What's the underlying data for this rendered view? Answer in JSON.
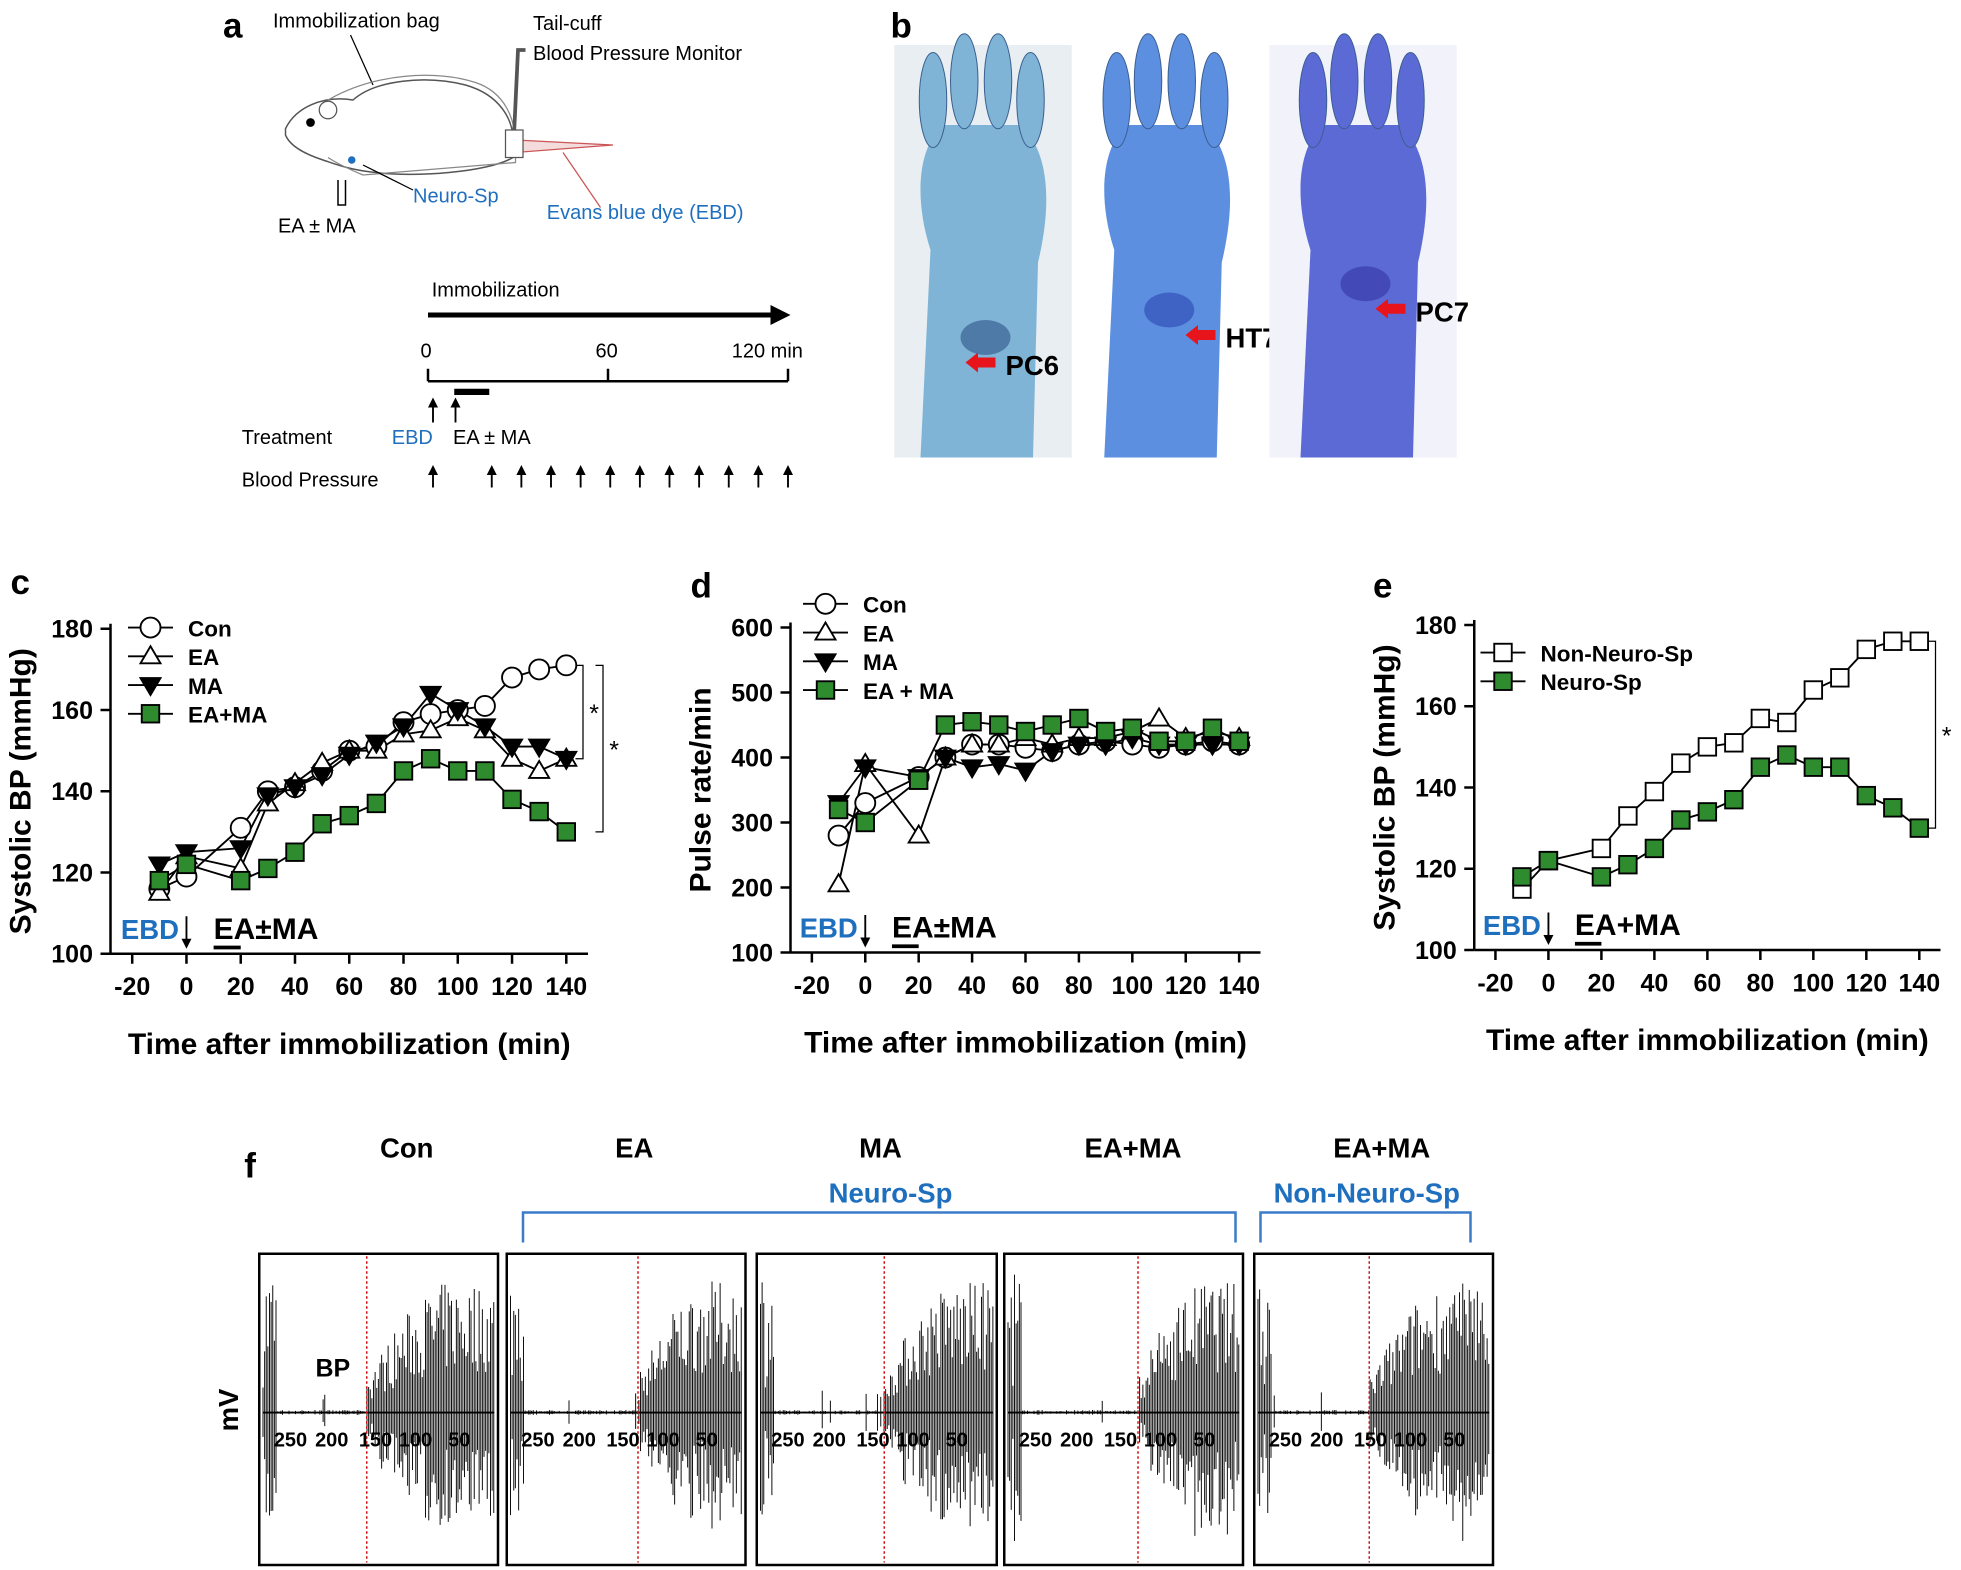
{
  "figure": {
    "panel_labels": [
      "a",
      "b",
      "c",
      "d",
      "e",
      "f"
    ],
    "a": {
      "bag": "Immobilization bag",
      "cuff": "Tail-cuff",
      "monitor": "Blood Pressure Monitor",
      "site": "Neuro-Sp",
      "stim": "EA ± MA",
      "dye": "Evans blue dye (EBD)",
      "timeline_title": "Immobilization",
      "time_labels": [
        "0",
        "60",
        "120 min"
      ],
      "rows": [
        "Treatment",
        "Blood Pressure"
      ],
      "treatments": [
        "EBD",
        "EA ± MA"
      ]
    },
    "b": {
      "points": [
        "PC6",
        "HT7",
        "PC7"
      ]
    },
    "f": {
      "groups": [
        "Con",
        "EA",
        "MA",
        "EA+MA",
        "EA+MA"
      ],
      "brackets": [
        "Neuro-Sp",
        "Non-Neuro-Sp"
      ],
      "y_label": "mV",
      "trace_label": "BP",
      "scale_labels": [
        "250",
        "200",
        "150",
        "100",
        "50"
      ]
    }
  },
  "chart_data": [
    {
      "type": "line",
      "y_label": "Systolic BP (mmHg)",
      "x_label": "Time after immobilization (min)",
      "x": [
        -10,
        0,
        20,
        30,
        40,
        50,
        60,
        70,
        80,
        90,
        100,
        110,
        120,
        130,
        140
      ],
      "xlim": [
        -28,
        148
      ],
      "xticks": [
        -20,
        0,
        20,
        40,
        60,
        80,
        100,
        120,
        140
      ],
      "ylim": [
        100,
        180
      ],
      "yticks": [
        100,
        120,
        140,
        160,
        180
      ],
      "series": [
        {
          "name": "Con",
          "marker": "circle",
          "color": "#ffffff",
          "values": [
            116,
            119,
            131,
            140,
            141,
            145,
            150,
            151,
            157,
            159,
            160,
            161,
            168,
            170,
            171
          ]
        },
        {
          "name": "EA",
          "marker": "triangle-up",
          "color": "#ffffff",
          "values": [
            115,
            124,
            121,
            137,
            142,
            147,
            150,
            150,
            154,
            155,
            158,
            155,
            148,
            145,
            148
          ]
        },
        {
          "name": "MA",
          "marker": "triangle-down",
          "color": "#000000",
          "values": [
            122,
            125,
            126,
            139,
            141,
            144,
            149,
            152,
            156,
            164,
            160,
            156,
            151,
            151,
            148
          ]
        },
        {
          "name": "EA+MA",
          "marker": "square",
          "color": "#2e8b2e",
          "values": [
            118,
            122,
            118,
            121,
            125,
            132,
            134,
            137,
            145,
            148,
            145,
            145,
            138,
            135,
            130
          ]
        }
      ],
      "annotations": [
        "EBD",
        "EA±MA"
      ],
      "significance": [
        "*",
        "*"
      ]
    },
    {
      "type": "line",
      "y_label": "Pulse rate/min",
      "x_label": "Time after immobilization (min)",
      "x": [
        -10,
        0,
        20,
        30,
        40,
        50,
        60,
        70,
        80,
        90,
        100,
        110,
        120,
        130,
        140
      ],
      "xlim": [
        -28,
        148
      ],
      "xticks": [
        -20,
        0,
        20,
        40,
        60,
        80,
        100,
        120,
        140
      ],
      "ylim": [
        100,
        600
      ],
      "yticks": [
        100,
        200,
        300,
        400,
        500,
        600
      ],
      "series": [
        {
          "name": "Con",
          "marker": "circle",
          "color": "#ffffff",
          "values": [
            280,
            330,
            370,
            400,
            420,
            420,
            415,
            410,
            420,
            425,
            420,
            415,
            420,
            425,
            420
          ]
        },
        {
          "name": "EA",
          "marker": "triangle-up",
          "color": "#ffffff",
          "values": [
            205,
            390,
            280,
            400,
            420,
            420,
            430,
            420,
            430,
            430,
            440,
            460,
            430,
            440,
            430
          ]
        },
        {
          "name": "MA",
          "marker": "triangle-down",
          "color": "#000000",
          "values": [
            330,
            385,
            370,
            400,
            385,
            390,
            380,
            410,
            420,
            420,
            430,
            420,
            420,
            420,
            420
          ]
        },
        {
          "name": "EA + MA",
          "marker": "square",
          "color": "#2e8b2e",
          "values": [
            320,
            300,
            365,
            450,
            455,
            450,
            440,
            450,
            460,
            440,
            445,
            425,
            425,
            445,
            425
          ]
        }
      ],
      "annotations": [
        "EBD",
        "EA±MA"
      ],
      "significance": []
    },
    {
      "type": "line",
      "y_label": "Systolic BP (mmHg)",
      "x_label": "Time after immobilization (min)",
      "x": [
        -10,
        0,
        20,
        30,
        40,
        50,
        60,
        70,
        80,
        90,
        100,
        110,
        120,
        130,
        140
      ],
      "xlim": [
        -28,
        148
      ],
      "xticks": [
        -20,
        0,
        20,
        40,
        60,
        80,
        100,
        120,
        140
      ],
      "ylim": [
        100,
        180
      ],
      "yticks": [
        100,
        120,
        140,
        160,
        180
      ],
      "series": [
        {
          "name": "Non-Neuro-Sp",
          "marker": "square",
          "color": "#ffffff",
          "values": [
            115,
            122,
            125,
            133,
            139,
            146,
            150,
            151,
            157,
            156,
            164,
            167,
            174,
            176,
            176
          ]
        },
        {
          "name": "Neuro-Sp",
          "marker": "square",
          "color": "#2e8b2e",
          "values": [
            118,
            122,
            118,
            121,
            125,
            132,
            134,
            137,
            145,
            148,
            145,
            145,
            138,
            135,
            130
          ]
        }
      ],
      "annotations": [
        "EBD",
        "EA+MA"
      ],
      "significance": [
        "*"
      ]
    }
  ]
}
